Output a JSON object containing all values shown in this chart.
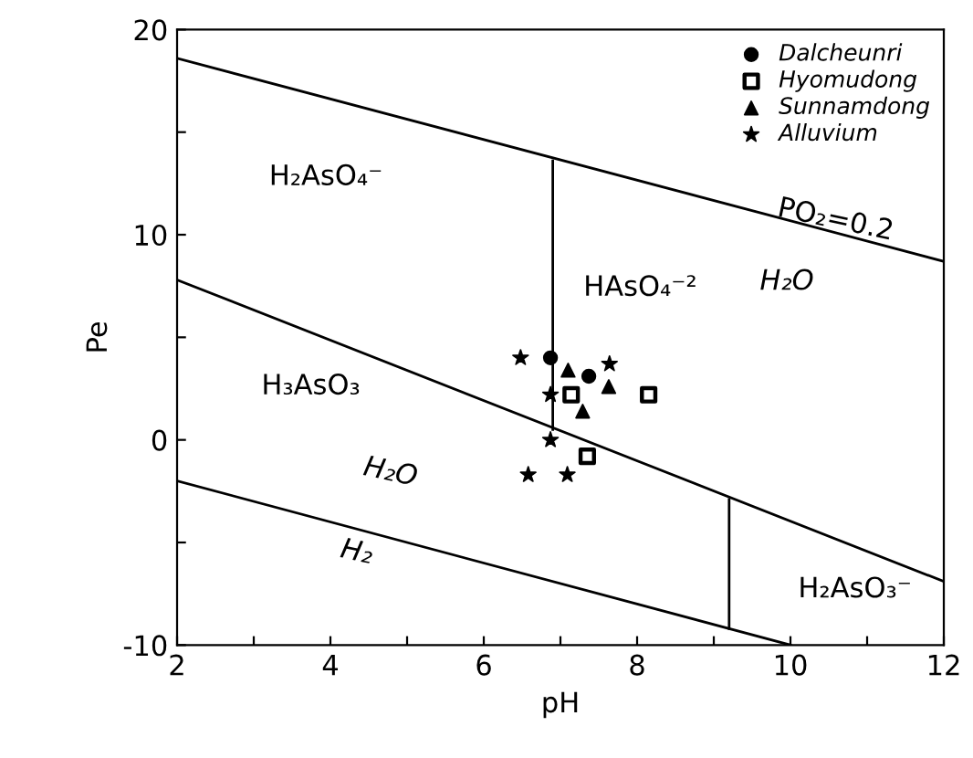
{
  "chart_data": {
    "type": "scatter",
    "xlabel": "pH",
    "ylabel": "Pe",
    "xlim": [
      2,
      12
    ],
    "ylim": [
      -10,
      20
    ],
    "xticks": [
      2,
      {
        "value": 3,
        "label": null
      },
      4,
      {
        "value": 5,
        "label": null
      },
      6,
      {
        "value": 7,
        "label": null
      },
      8,
      {
        "value": 9,
        "label": null
      },
      10,
      {
        "value": 11,
        "label": null
      },
      12
    ],
    "yticks": [
      -10,
      {
        "value": -5,
        "label": null
      },
      0,
      {
        "value": 5,
        "label": null
      },
      10,
      {
        "value": 15,
        "label": null
      },
      20
    ],
    "grid": false,
    "legend": "top right",
    "series": [
      {
        "name": "Dalcheunri",
        "marker": "circle",
        "color": "#000000",
        "x": [
          6.87,
          7.37
        ],
        "values": [
          4.0,
          3.1
        ]
      },
      {
        "name": "Hyomudong",
        "marker": "square",
        "color": "#000000",
        "x": [
          7.14,
          8.15,
          7.35
        ],
        "values": [
          2.2,
          2.2,
          -0.8
        ]
      },
      {
        "name": "Sunnamdong",
        "marker": "triangle",
        "color": "#000000",
        "x": [
          7.1,
          7.63,
          7.29
        ],
        "values": [
          3.4,
          2.6,
          1.4
        ]
      },
      {
        "name": "Alluvium",
        "marker": "star",
        "color": "#000000",
        "x": [
          6.48,
          7.64,
          6.87,
          6.87,
          6.58,
          7.09
        ],
        "values": [
          4.0,
          3.7,
          2.2,
          0.0,
          -1.7,
          -1.7
        ]
      },
      {
        "type": "line",
        "color": "#000000",
        "x": [
          2,
          12
        ],
        "values": [
          18.6,
          8.7
        ]
      },
      {
        "type": "line",
        "color": "#000000",
        "x": [
          2,
          12
        ],
        "values": [
          7.8,
          -6.9
        ]
      },
      {
        "type": "line",
        "color": "#000000",
        "x": [
          2,
          10
        ],
        "values": [
          -2.0,
          -10.0
        ]
      },
      {
        "type": "line",
        "color": "#000000",
        "x": [
          6.9,
          6.9
        ],
        "values": [
          0.5,
          13.6
        ]
      },
      {
        "type": "line",
        "color": "#000000",
        "x": [
          9.2,
          9.2
        ],
        "values": [
          -2.9,
          -9.2
        ]
      }
    ],
    "annotations": [
      "H₂AsO₄⁻",
      "H₃AsO₃",
      "H₂O",
      "H₂",
      "HAsO₄⁻²",
      "PO₂=0.2",
      "H₂O",
      "H₂AsO₃⁻"
    ]
  }
}
